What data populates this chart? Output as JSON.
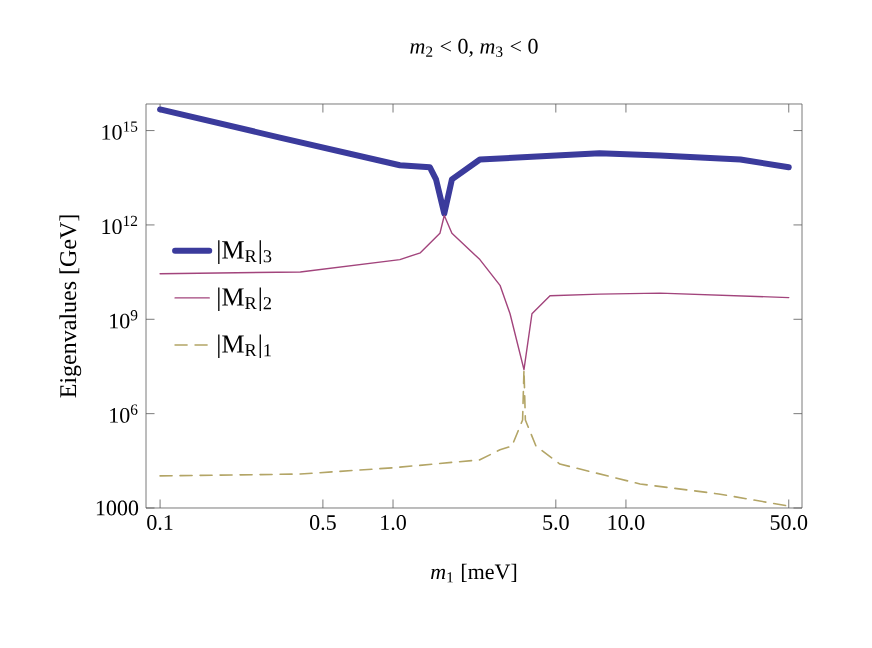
{
  "chart_data": {
    "type": "line",
    "title": "*m*$_{2}$ < 0, *m*$_{3}$ < 0",
    "xlabel": "*m*$_{1}$ [meV]",
    "ylabel": "Eigenvalues [GeV]",
    "log": "xy",
    "xlim": [
      0.087,
      57
    ],
    "ylim": [
      1000,
      7000000000000000.0
    ],
    "xticks": [
      0.1,
      0.5,
      {
        "value": 1,
        "label": "1.0"
      },
      {
        "value": 5,
        "label": "5.0"
      },
      {
        "value": 10,
        "label": "10.0"
      },
      {
        "value": 50,
        "label": "50.0"
      }
    ],
    "yticks": [
      1000,
      {
        "value": 1000000.0,
        "label": "10$^{6}$"
      },
      {
        "value": 1000000000.0,
        "label": "10$^{9}$"
      },
      {
        "value": 1000000000000.0,
        "label": "10$^{12}$"
      },
      {
        "value": 1000000000000000.0,
        "label": "10$^{15}$"
      }
    ],
    "legend": "left",
    "grid": false,
    "marker": "none",
    "series": [
      {
        "name": "|M$_{R}$|$_{3}$",
        "color": "#3b3b9c",
        "line_style": "solid",
        "x": [
          0.1,
          0.327,
          1.07,
          1.44,
          1.53,
          1.66,
          1.79,
          2.36,
          7.7,
          14,
          31,
          50
        ],
        "values": [
          4700000000000000.0,
          600000000000000.0,
          79000000000000.0,
          68000000000000.0,
          28000000000000.0,
          2300000000000.0,
          28000000000000.0,
          120000000000000.0,
          190000000000000.0,
          160000000000000.0,
          120000000000000.0,
          68000000000000.0
        ]
      },
      {
        "name": "|M$_{R}$|$_{2}$",
        "color": "#a2447c",
        "line_style": "solid",
        "x": [
          0.1,
          0.4,
          1.07,
          1.31,
          1.59,
          1.66,
          1.79,
          2.36,
          2.88,
          3.18,
          3.65,
          3.95,
          4.72,
          7.7,
          14,
          50
        ],
        "values": [
          28000000000.0,
          32000000000.0,
          79000000000.0,
          130000000000.0,
          540000000000.0,
          2000000000000.0,
          540000000000.0,
          79000000000.0,
          12000000000.0,
          1500000000.0,
          25000000.0,
          1500000000.0,
          5600000000.0,
          6300000000.0,
          6800000000.0,
          4900000000.0
        ]
      },
      {
        "name": "|M$_{R}$|$_{1}$",
        "color": "#b3a566",
        "line_style": "dashed",
        "x": [
          0.1,
          0.4,
          1.0,
          2.36,
          2.88,
          3.24,
          3.6,
          3.65,
          3.7,
          4.11,
          5.2,
          11.5,
          25,
          50
        ],
        "values": [
          10500.0,
          12000.0,
          19000.0,
          34000.0,
          71000.0,
          93000.0,
          630000.0,
          25000000.0,
          630000.0,
          93000.0,
          25000.0,
          5800.0,
          2800.0,
          1150.0
        ]
      }
    ]
  }
}
